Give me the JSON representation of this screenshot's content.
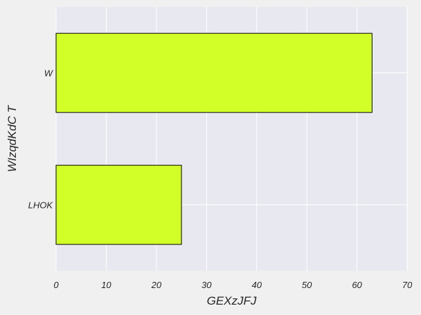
{
  "chart_data": {
    "type": "bar",
    "orientation": "horizontal",
    "categories": [
      "LHOK",
      "W"
    ],
    "values": [
      25,
      63
    ],
    "xlabel": "GEXzJFJ",
    "ylabel": "WIzqdKdC T",
    "xlim": [
      0,
      70
    ],
    "xticks": [
      0,
      10,
      20,
      30,
      40,
      50,
      60,
      70
    ],
    "grid": true,
    "legend": "none",
    "colors": {
      "bar_fill": "#d2ff27",
      "bar_edge": "#000000",
      "plot_background": "#e8e8f0",
      "figure_background": "#f0f0f0",
      "grid": "#ffffff",
      "text": "#262626"
    }
  }
}
